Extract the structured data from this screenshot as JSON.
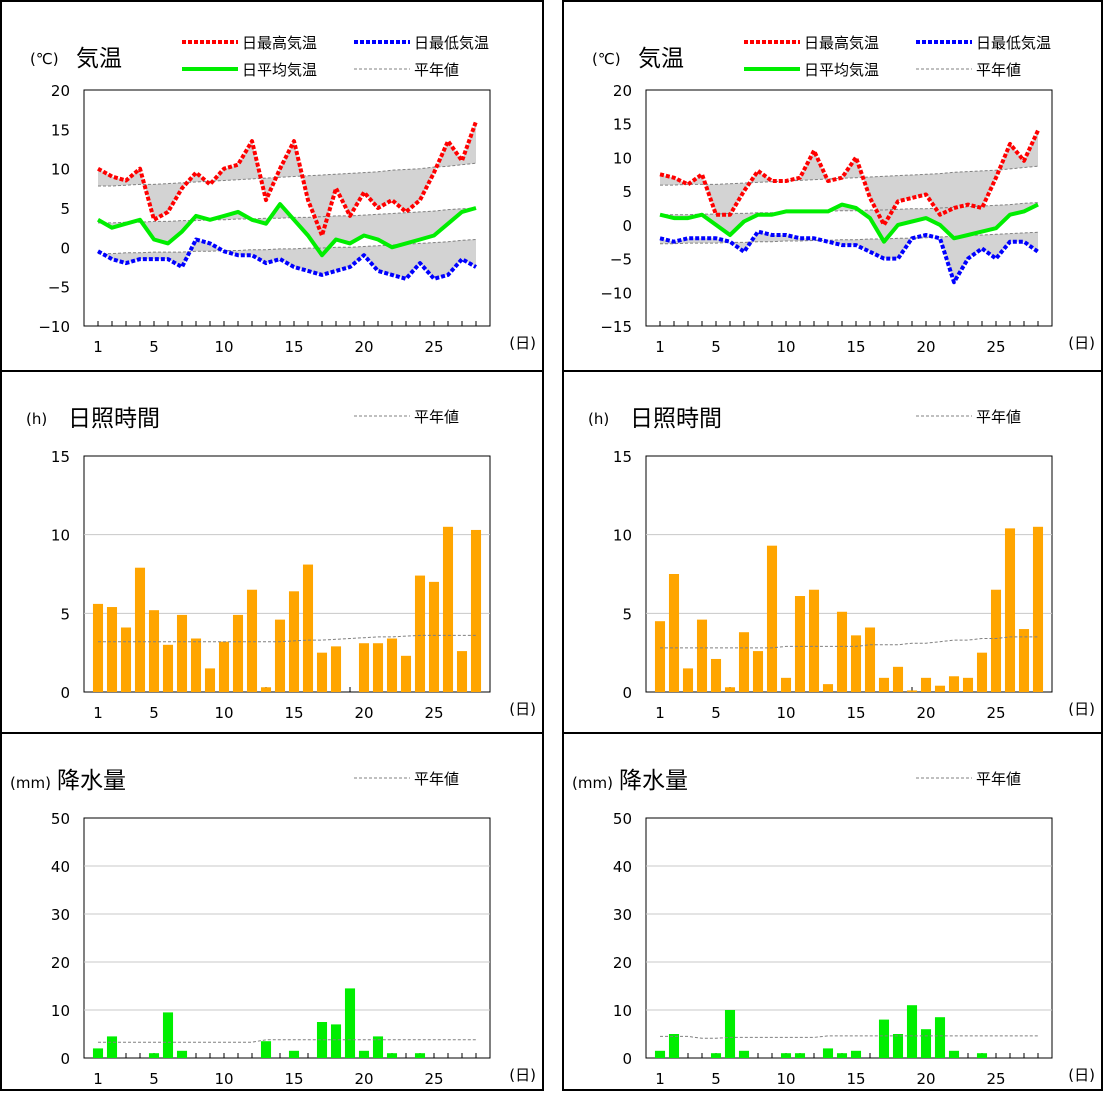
{
  "colors": {
    "max_line": "#ff0000",
    "min_line": "#0000ff",
    "avg_line": "#00ee00",
    "normal_line": "#808080",
    "anomaly_fill": "#d3d3d3",
    "sunshine_bar": "#ffa500",
    "precip_bar": "#00ee00",
    "gridline": "#c8c8c8"
  },
  "chart_data": [
    {
      "id": "temp-a",
      "column": 0,
      "row": 0,
      "type": "line",
      "unit_label": "(℃)",
      "title": "気温",
      "legend": {
        "max": "日最高気温",
        "min": "日最低気温",
        "avg": "日平均気温",
        "normal": "平年値"
      },
      "x_unit": "(日)",
      "x_ticks": [
        1,
        5,
        10,
        15,
        20,
        25
      ],
      "y_ticks": [
        20,
        15,
        10,
        5,
        0,
        -5,
        -10
      ],
      "ylim": [
        -10,
        20
      ],
      "xlim": [
        0,
        29
      ],
      "x": [
        1,
        2,
        3,
        4,
        5,
        6,
        7,
        8,
        9,
        10,
        11,
        12,
        13,
        14,
        15,
        16,
        17,
        18,
        19,
        20,
        21,
        22,
        23,
        24,
        25,
        26,
        27,
        28
      ],
      "series": [
        {
          "name": "日最高気温",
          "key": "max",
          "values": [
            10,
            9,
            8.5,
            10,
            3.5,
            4.5,
            7.5,
            9.5,
            8,
            10,
            10.5,
            13.5,
            6,
            10,
            13.5,
            6,
            1.5,
            7.5,
            4,
            7,
            5,
            6,
            4.5,
            6,
            9.5,
            13.5,
            11,
            16
          ]
        },
        {
          "name": "日最低気温",
          "key": "min",
          "values": [
            -0.5,
            -1.5,
            -2,
            -1.5,
            -1.5,
            -1.5,
            -2.5,
            1,
            0.5,
            -0.5,
            -1,
            -1,
            -2,
            -1.5,
            -2.5,
            -3,
            -3.5,
            -3,
            -2.5,
            -1,
            -3,
            -3.5,
            -4,
            -2,
            -4,
            -3.5,
            -1.5,
            -2.5
          ]
        },
        {
          "name": "日平均気温",
          "key": "avg",
          "values": [
            3.5,
            2.5,
            3,
            3.5,
            1,
            0.5,
            2,
            4,
            3.5,
            4,
            4.5,
            3.5,
            3,
            5.5,
            3.5,
            1.5,
            -1,
            1,
            0.5,
            1.5,
            1,
            0,
            0.5,
            1,
            1.5,
            3,
            4.5,
            5
          ]
        },
        {
          "name": "平年値",
          "key": "normal_max",
          "values": [
            7.8,
            7.8,
            7.9,
            8,
            8,
            8.1,
            8.2,
            8.3,
            8.4,
            8.5,
            8.6,
            8.7,
            8.8,
            8.9,
            9,
            9.1,
            9.2,
            9.3,
            9.4,
            9.5,
            9.6,
            9.8,
            9.9,
            10,
            10.2,
            10.3,
            10.5,
            10.7
          ]
        },
        {
          "name": "平年値",
          "key": "normal_avg",
          "values": [
            3.1,
            3.1,
            3.2,
            3.2,
            3.3,
            3.3,
            3.4,
            3.4,
            3.5,
            3.5,
            3.6,
            3.6,
            3.7,
            3.7,
            3.8,
            3.8,
            3.9,
            4,
            4,
            4.1,
            4.2,
            4.3,
            4.4,
            4.5,
            4.6,
            4.8,
            4.9,
            5
          ]
        },
        {
          "name": "平年値",
          "key": "normal_min",
          "values": [
            -0.8,
            -0.8,
            -0.7,
            -0.7,
            -0.6,
            -0.6,
            -0.6,
            -0.5,
            -0.5,
            -0.4,
            -0.4,
            -0.3,
            -0.3,
            -0.2,
            -0.2,
            -0.1,
            -0.1,
            0,
            0,
            0.1,
            0.2,
            0.3,
            0.4,
            0.5,
            0.6,
            0.7,
            0.9,
            1
          ]
        }
      ]
    },
    {
      "id": "temp-b",
      "column": 1,
      "row": 0,
      "type": "line",
      "unit_label": "(℃)",
      "title": "気温",
      "legend": {
        "max": "日最高気温",
        "min": "日最低気温",
        "avg": "日平均気温",
        "normal": "平年値"
      },
      "x_unit": "(日)",
      "x_ticks": [
        1,
        5,
        10,
        15,
        20,
        25
      ],
      "y_ticks": [
        20,
        15,
        10,
        5,
        0,
        -5,
        -10,
        -15
      ],
      "ylim": [
        -15,
        20
      ],
      "xlim": [
        0,
        29
      ],
      "x": [
        1,
        2,
        3,
        4,
        5,
        6,
        7,
        8,
        9,
        10,
        11,
        12,
        13,
        14,
        15,
        16,
        17,
        18,
        19,
        20,
        21,
        22,
        23,
        24,
        25,
        26,
        27,
        28
      ],
      "series": [
        {
          "name": "日最高気温",
          "key": "max",
          "values": [
            7.5,
            7,
            6,
            7.5,
            1.5,
            1.5,
            5,
            8,
            6.5,
            6.5,
            7,
            11,
            6.5,
            7,
            10,
            4,
            0,
            3.5,
            4,
            4.5,
            1.5,
            2.5,
            3,
            2.5,
            7,
            12,
            9.5,
            14
          ]
        },
        {
          "name": "日最低気温",
          "key": "min",
          "values": [
            -2,
            -2.5,
            -2,
            -2,
            -2,
            -2.5,
            -4,
            -1,
            -1.5,
            -1.5,
            -2,
            -2,
            -2.5,
            -3,
            -3,
            -4,
            -5,
            -5,
            -2,
            -1.5,
            -2,
            -8.5,
            -5,
            -3.5,
            -5,
            -2.5,
            -2.5,
            -4
          ]
        },
        {
          "name": "日平均気温",
          "key": "avg",
          "values": [
            1.5,
            1,
            1,
            1.5,
            0,
            -1.5,
            0.5,
            1.5,
            1.5,
            2,
            2,
            2,
            2,
            3,
            2.5,
            1,
            -2.5,
            0,
            0.5,
            1,
            0,
            -2,
            -1.5,
            -1,
            -0.5,
            1.5,
            2,
            3
          ]
        },
        {
          "name": "平年値",
          "key": "normal_max",
          "values": [
            5.9,
            5.9,
            6,
            6,
            6,
            6.1,
            6.2,
            6.3,
            6.4,
            6.5,
            6.6,
            6.7,
            6.8,
            6.9,
            7,
            7.1,
            7.2,
            7.3,
            7.4,
            7.5,
            7.6,
            7.8,
            7.9,
            8,
            8.1,
            8.3,
            8.5,
            8.7
          ]
        },
        {
          "name": "平年値",
          "key": "normal_avg",
          "values": [
            1.5,
            1.5,
            1.5,
            1.6,
            1.6,
            1.7,
            1.7,
            1.8,
            1.8,
            1.9,
            1.9,
            2,
            2,
            2.1,
            2.1,
            2.2,
            2.2,
            2.3,
            2.4,
            2.4,
            2.5,
            2.6,
            2.7,
            2.8,
            2.9,
            3,
            3.2,
            3.3
          ]
        },
        {
          "name": "平年値",
          "key": "normal_min",
          "values": [
            -2.8,
            -2.8,
            -2.7,
            -2.7,
            -2.7,
            -2.6,
            -2.6,
            -2.5,
            -2.5,
            -2.4,
            -2.4,
            -2.3,
            -2.3,
            -2.2,
            -2.2,
            -2.1,
            -2.1,
            -2,
            -2,
            -1.9,
            -1.8,
            -1.7,
            -1.6,
            -1.5,
            -1.4,
            -1.3,
            -1.2,
            -1.1
          ]
        }
      ]
    },
    {
      "id": "sun-a",
      "column": 0,
      "row": 1,
      "type": "bar",
      "unit_label": "(h)",
      "title": "日照時間",
      "legend": {
        "normal": "平年値"
      },
      "x_unit": "(日)",
      "x_ticks": [
        1,
        5,
        10,
        15,
        20,
        25
      ],
      "y_ticks": [
        15,
        10,
        5,
        0
      ],
      "ylim": [
        0,
        15
      ],
      "xlim": [
        0,
        29
      ],
      "x": [
        1,
        2,
        3,
        4,
        5,
        6,
        7,
        8,
        9,
        10,
        11,
        12,
        13,
        14,
        15,
        16,
        17,
        18,
        19,
        20,
        21,
        22,
        23,
        24,
        25,
        26,
        27,
        28
      ],
      "values": [
        5.6,
        5.4,
        4.1,
        7.9,
        5.2,
        3,
        4.9,
        3.4,
        1.5,
        3.2,
        4.9,
        6.5,
        0.3,
        4.6,
        6.4,
        8.1,
        2.5,
        2.9,
        0,
        3.1,
        3.1,
        3.4,
        2.3,
        7.4,
        7,
        10.5,
        2.6,
        10.3
      ],
      "normal": [
        3.2,
        3.2,
        3.2,
        3.2,
        3.2,
        3.2,
        3.2,
        3.2,
        3.2,
        3.2,
        3.2,
        3.2,
        3.2,
        3.2,
        3.25,
        3.3,
        3.3,
        3.35,
        3.4,
        3.45,
        3.5,
        3.5,
        3.55,
        3.6,
        3.6,
        3.6,
        3.6,
        3.6
      ]
    },
    {
      "id": "sun-b",
      "column": 1,
      "row": 1,
      "type": "bar",
      "unit_label": "(h)",
      "title": "日照時間",
      "legend": {
        "normal": "平年値"
      },
      "x_unit": "(日)",
      "x_ticks": [
        1,
        5,
        10,
        15,
        20,
        25
      ],
      "y_ticks": [
        15,
        10,
        5,
        0
      ],
      "ylim": [
        0,
        15
      ],
      "xlim": [
        0,
        29
      ],
      "x": [
        1,
        2,
        3,
        4,
        5,
        6,
        7,
        8,
        9,
        10,
        11,
        12,
        13,
        14,
        15,
        16,
        17,
        18,
        19,
        20,
        21,
        22,
        23,
        24,
        25,
        26,
        27,
        28
      ],
      "values": [
        4.5,
        7.5,
        1.5,
        4.6,
        2.1,
        0.3,
        3.8,
        2.6,
        9.3,
        0.9,
        6.1,
        6.5,
        0.5,
        5.1,
        3.6,
        4.1,
        0.9,
        1.6,
        0.1,
        0.9,
        0.4,
        1,
        0.9,
        2.5,
        6.5,
        10.4,
        4,
        10.5
      ],
      "normal": [
        2.8,
        2.8,
        2.8,
        2.8,
        2.8,
        2.8,
        2.8,
        2.8,
        2.8,
        2.9,
        2.9,
        2.9,
        2.9,
        2.9,
        2.9,
        3,
        3,
        3,
        3.1,
        3.1,
        3.2,
        3.3,
        3.3,
        3.4,
        3.4,
        3.5,
        3.5,
        3.5
      ]
    },
    {
      "id": "rain-a",
      "column": 0,
      "row": 2,
      "type": "bar",
      "unit_label": "(mm)",
      "title": "降水量",
      "legend": {
        "normal": "平年値"
      },
      "x_unit": "(日)",
      "x_ticks": [
        1,
        5,
        10,
        15,
        20,
        25
      ],
      "y_ticks": [
        50,
        40,
        30,
        20,
        10,
        0
      ],
      "ylim": [
        0,
        50
      ],
      "xlim": [
        0,
        29
      ],
      "x": [
        1,
        2,
        3,
        4,
        5,
        6,
        7,
        8,
        9,
        10,
        11,
        12,
        13,
        14,
        15,
        16,
        17,
        18,
        19,
        20,
        21,
        22,
        23,
        24,
        25,
        26,
        27,
        28
      ],
      "values": [
        2,
        4.5,
        0,
        0,
        1,
        9.5,
        1.5,
        0,
        0,
        0,
        0,
        0,
        3.5,
        0,
        1.5,
        0,
        7.5,
        7,
        14.5,
        1.5,
        4.5,
        1,
        0,
        1,
        0,
        0,
        0,
        0
      ],
      "normal": [
        3.3,
        3.3,
        3.3,
        3.3,
        3.3,
        3.3,
        3.3,
        3.3,
        3.3,
        3.3,
        3.3,
        3.3,
        3.8,
        3.8,
        3.8,
        3.8,
        3.8,
        3.8,
        3.8,
        3.8,
        3.8,
        3.8,
        3.8,
        3.8,
        3.8,
        3.8,
        3.8,
        3.8
      ]
    },
    {
      "id": "rain-b",
      "column": 1,
      "row": 2,
      "type": "bar",
      "unit_label": "(mm)",
      "title": "降水量",
      "legend": {
        "normal": "平年値"
      },
      "x_unit": "(日)",
      "x_ticks": [
        1,
        5,
        10,
        15,
        20,
        25
      ],
      "y_ticks": [
        50,
        40,
        30,
        20,
        10,
        0
      ],
      "ylim": [
        0,
        50
      ],
      "xlim": [
        0,
        29
      ],
      "x": [
        1,
        2,
        3,
        4,
        5,
        6,
        7,
        8,
        9,
        10,
        11,
        12,
        13,
        14,
        15,
        16,
        17,
        18,
        19,
        20,
        21,
        22,
        23,
        24,
        25,
        26,
        27,
        28
      ],
      "values": [
        1.5,
        5,
        0,
        0,
        1,
        10,
        1.5,
        0,
        0,
        1,
        1,
        0,
        2,
        1,
        1.5,
        0,
        8,
        5,
        11,
        6,
        8.5,
        1.5,
        0,
        1,
        0,
        0,
        0,
        0
      ],
      "normal": [
        4.5,
        4.5,
        4.5,
        4.1,
        4.1,
        4.3,
        4.3,
        4.3,
        4.3,
        4.3,
        4.3,
        4.3,
        4.6,
        4.6,
        4.6,
        4.6,
        4.6,
        4.6,
        4.6,
        4.6,
        4.6,
        4.6,
        4.6,
        4.6,
        4.6,
        4.6,
        4.6,
        4.6
      ]
    }
  ]
}
